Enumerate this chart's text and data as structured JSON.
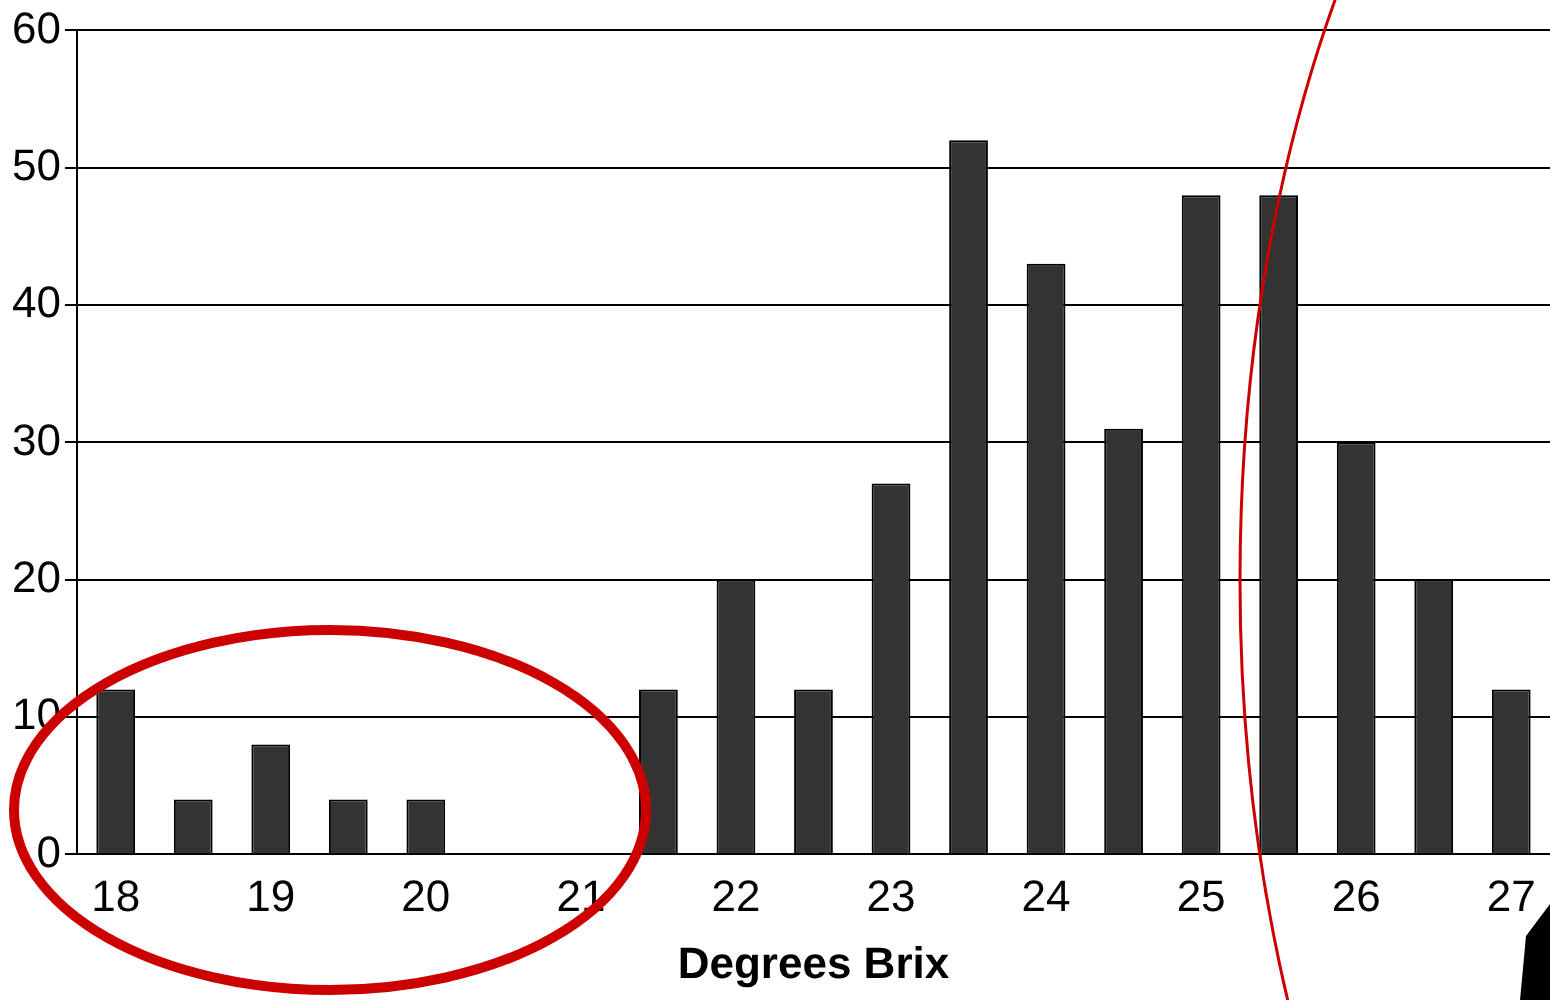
{
  "chart_data": {
    "type": "bar",
    "xlabel": "Degrees Brix",
    "categories": [
      "18",
      null,
      "19",
      null,
      "20",
      null,
      "21",
      null,
      "22",
      null,
      "23",
      null,
      "24",
      null,
      "25",
      null,
      "26",
      null,
      "27"
    ],
    "values": [
      12,
      4,
      8,
      4,
      4,
      0,
      0,
      12,
      20,
      12,
      27,
      52,
      43,
      31,
      48,
      48,
      30,
      20,
      12
    ],
    "color": "#333333",
    "ylim": [
      0,
      60
    ],
    "yticks": [
      0,
      10,
      20,
      30,
      40,
      50,
      60
    ],
    "grid": "y",
    "legend": false
  }
}
